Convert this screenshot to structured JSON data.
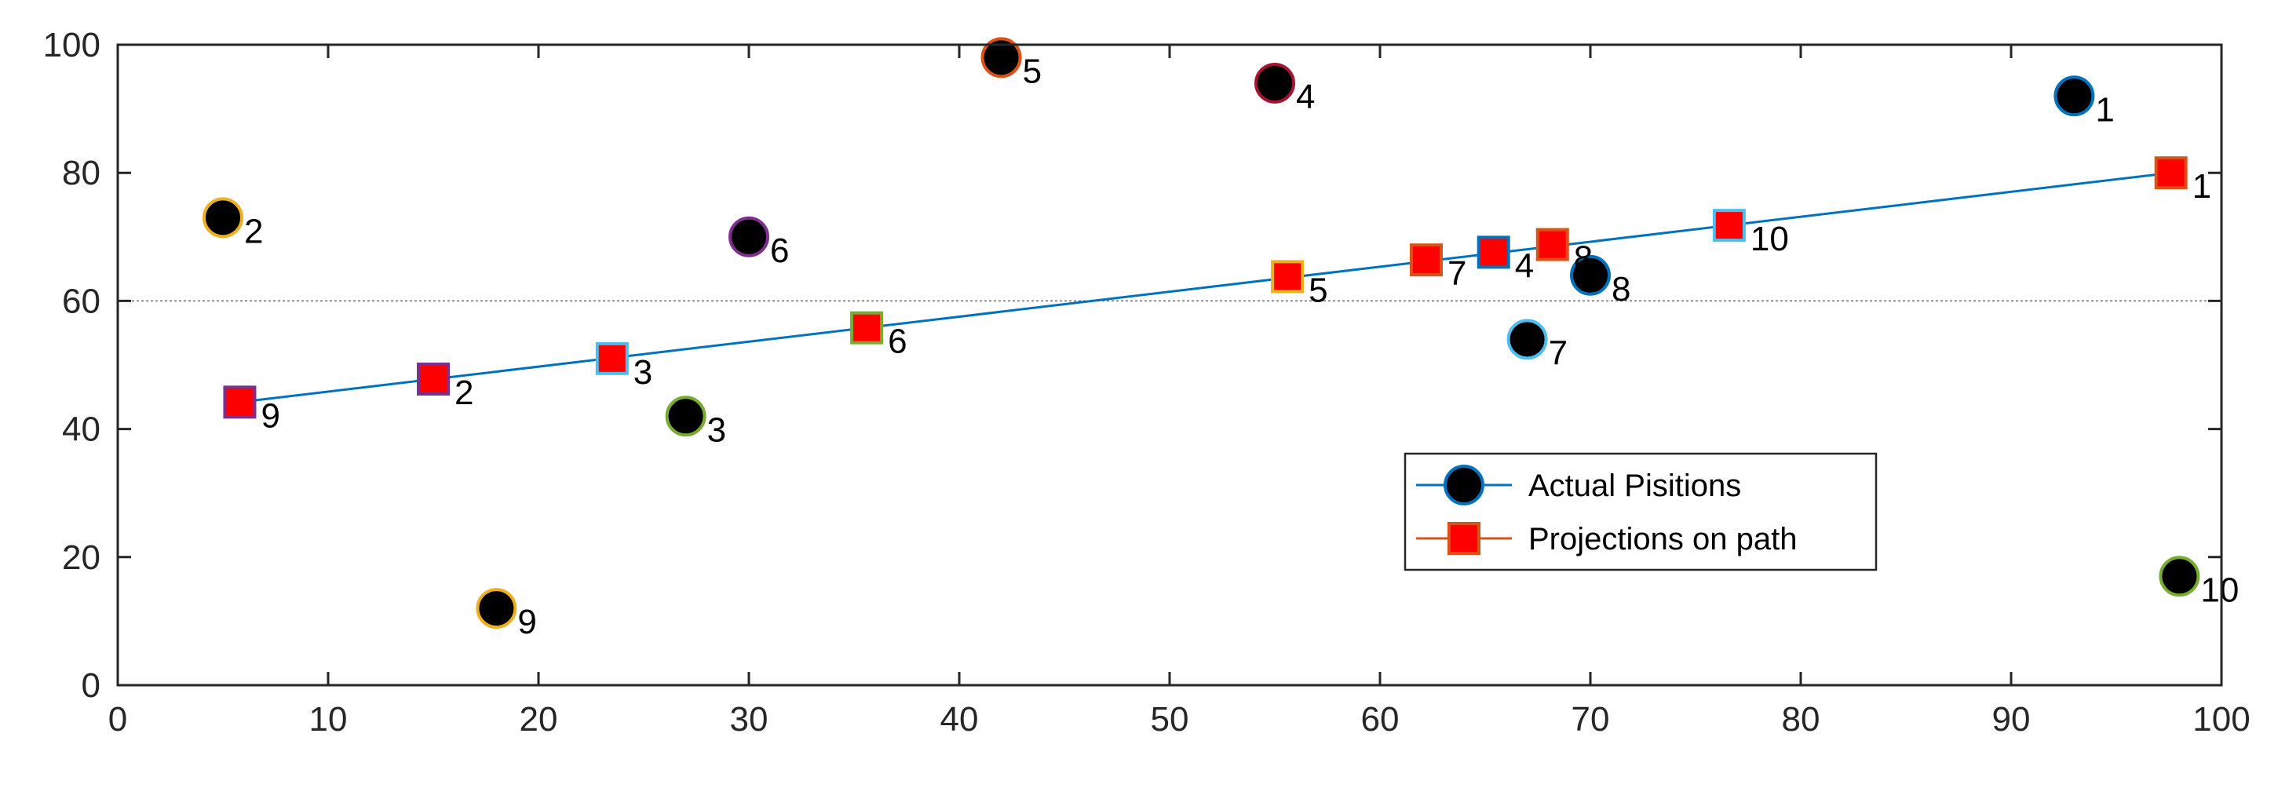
{
  "chart_data": {
    "type": "scatter",
    "xlim": [
      0,
      100
    ],
    "ylim": [
      0,
      100
    ],
    "x_ticks": [
      0,
      10,
      20,
      30,
      40,
      50,
      60,
      70,
      80,
      90,
      100
    ],
    "y_ticks": [
      0,
      20,
      40,
      60,
      80,
      100
    ],
    "grid": false,
    "reference_line_y": 60,
    "legend_position": "lower-right",
    "series": [
      {
        "name": "Actual Pisitions",
        "marker": "circle",
        "fill": "#000000",
        "legend_edge": "#0072bd",
        "points": [
          {
            "label": "1",
            "x": 93,
            "y": 92,
            "edge": "#0072bd"
          },
          {
            "label": "2",
            "x": 5,
            "y": 73,
            "edge": "#edb120"
          },
          {
            "label": "3",
            "x": 27,
            "y": 42,
            "edge": "#77ac30"
          },
          {
            "label": "4",
            "x": 55,
            "y": 94,
            "edge": "#a2142f"
          },
          {
            "label": "5",
            "x": 42,
            "y": 98,
            "edge": "#d95319"
          },
          {
            "label": "6",
            "x": 30,
            "y": 70,
            "edge": "#7e2f8e"
          },
          {
            "label": "7",
            "x": 67,
            "y": 54,
            "edge": "#4dbeee"
          },
          {
            "label": "8",
            "x": 70,
            "y": 64,
            "edge": "#0072bd"
          },
          {
            "label": "9",
            "x": 18,
            "y": 12,
            "edge": "#edb120"
          },
          {
            "label": "10",
            "x": 98,
            "y": 17,
            "edge": "#77ac30"
          }
        ]
      },
      {
        "name": "Projections on path",
        "marker": "square",
        "fill": "#ff0000",
        "legend_edge": "#d95319",
        "points": [
          {
            "label": "1",
            "x": 97.6,
            "y": 80,
            "edge": "#d95319"
          },
          {
            "label": "2",
            "x": 15,
            "y": 47.8,
            "edge": "#7e2f8e"
          },
          {
            "label": "3",
            "x": 23.5,
            "y": 51,
            "edge": "#4dbeee"
          },
          {
            "label": "4",
            "x": 65.4,
            "y": 67.6,
            "edge": "#0072bd"
          },
          {
            "label": "5",
            "x": 55.6,
            "y": 63.8,
            "edge": "#edb120"
          },
          {
            "label": "6",
            "x": 35.6,
            "y": 55.8,
            "edge": "#77ac30"
          },
          {
            "label": "7",
            "x": 62.2,
            "y": 66.4,
            "edge": "#d95319"
          },
          {
            "label": "8",
            "x": 68.2,
            "y": 68.8,
            "edge": "#d95319"
          },
          {
            "label": "9",
            "x": 5.8,
            "y": 44.2,
            "edge": "#7e2f8e"
          },
          {
            "label": "10",
            "x": 76.6,
            "y": 71.8,
            "edge": "#4dbeee"
          }
        ]
      }
    ],
    "path_line": {
      "color": "#0072bd",
      "points": [
        [
          5.8,
          44.2
        ],
        [
          97.6,
          80
        ]
      ]
    }
  }
}
